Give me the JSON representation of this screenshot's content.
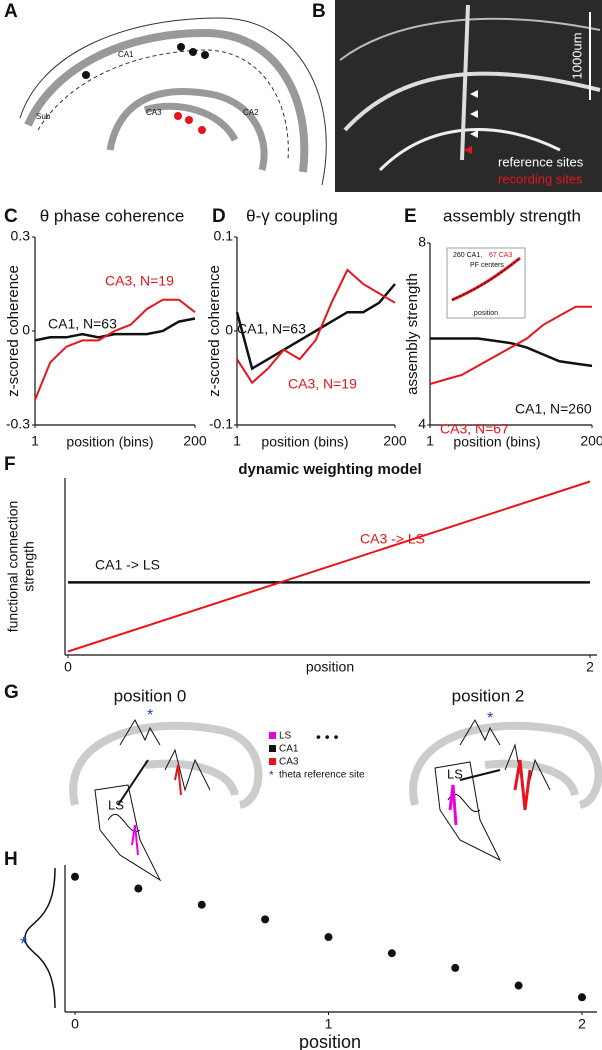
{
  "panels": {
    "A": {
      "letter": "A",
      "labels": [
        "CA1",
        "CA2",
        "CA3",
        "Sub"
      ]
    },
    "B": {
      "letter": "B",
      "scale_bar": "1000um",
      "legend": [
        "reference sites",
        "recording sites"
      ]
    },
    "G": {
      "letter": "G",
      "titles": [
        "position 0",
        "position 2"
      ],
      "region_labels": [
        "LS",
        "LS"
      ],
      "stars": [
        "*",
        "*"
      ],
      "ellipsis": "• • •",
      "legend": [
        "LS",
        "CA1",
        "CA3",
        "theta reference site"
      ],
      "legend_star": "*"
    }
  },
  "chart_data": [
    {
      "type": "line",
      "letter": "C",
      "title": "θ phase coherence",
      "ylabel": "z-scored coherence",
      "xlabel": "position (bins)",
      "x": [
        1,
        20,
        40,
        60,
        80,
        100,
        120,
        140,
        160,
        180,
        200
      ],
      "xlim": [
        1,
        200
      ],
      "xticks": [
        1,
        200
      ],
      "ylim": [
        -0.3,
        0.3
      ],
      "yticks": [
        -0.3,
        0,
        0.3
      ],
      "series": [
        {
          "name": "CA1, N=63",
          "color": "#111111",
          "values": [
            -0.03,
            -0.02,
            -0.02,
            -0.01,
            -0.02,
            -0.01,
            -0.01,
            -0.01,
            0.0,
            0.03,
            0.04
          ]
        },
        {
          "name": "CA3, N=19",
          "color": "#e8141c",
          "values": [
            -0.22,
            -0.1,
            -0.05,
            -0.03,
            -0.03,
            0.0,
            0.02,
            0.07,
            0.1,
            0.1,
            0.06
          ]
        }
      ]
    },
    {
      "type": "line",
      "letter": "D",
      "title": "θ-γ coupling",
      "ylabel": "z-scored coherence",
      "xlabel": "position (bins)",
      "x": [
        1,
        20,
        40,
        60,
        80,
        100,
        120,
        140,
        160,
        180,
        200
      ],
      "xlim": [
        1,
        200
      ],
      "xticks": [
        1,
        200
      ],
      "ylim": [
        -0.1,
        0.1
      ],
      "yticks": [
        -0.1,
        0,
        0.1
      ],
      "series": [
        {
          "name": "CA1, N=63",
          "color": "#111111",
          "values": [
            0.02,
            -0.04,
            -0.03,
            -0.02,
            -0.01,
            0.0,
            0.01,
            0.02,
            0.02,
            0.03,
            0.05
          ]
        },
        {
          "name": "CA3, N=19",
          "color": "#e8141c",
          "values": [
            -0.03,
            -0.055,
            -0.04,
            -0.02,
            -0.03,
            -0.01,
            0.03,
            0.065,
            0.05,
            0.04,
            0.03
          ]
        }
      ]
    },
    {
      "type": "line",
      "letter": "E",
      "title": "assembly strength",
      "ylabel": "assembly strength",
      "xlabel": "position (bins)",
      "x": [
        1,
        20,
        40,
        60,
        80,
        100,
        120,
        140,
        160,
        180,
        200
      ],
      "xlim": [
        1,
        200
      ],
      "xticks": [
        1,
        200
      ],
      "ylim": [
        4,
        8
      ],
      "yticks": [
        4,
        8
      ],
      "series": [
        {
          "name": "CA1, N=260",
          "color": "#111111",
          "values": [
            5.9,
            5.9,
            5.9,
            5.9,
            5.85,
            5.8,
            5.7,
            5.55,
            5.4,
            5.35,
            5.3
          ]
        },
        {
          "name": "CA3, N=67",
          "color": "#e8141c",
          "values": [
            4.9,
            5.0,
            5.1,
            5.3,
            5.5,
            5.7,
            5.9,
            6.2,
            6.4,
            6.6,
            6.6
          ]
        }
      ],
      "inset": {
        "title_parts": [
          "260 CA1,",
          "67 CA3"
        ],
        "subtitle": "PF centers",
        "xlabel": "position"
      }
    },
    {
      "type": "line",
      "letter": "F",
      "title": "dynamic weighting model",
      "ylabel": [
        "functional connection",
        "strength"
      ],
      "xlabel": "position",
      "x": [
        0,
        2
      ],
      "xlim": [
        0,
        2
      ],
      "xticks": [
        0,
        2
      ],
      "ylim": [
        0,
        1
      ],
      "series": [
        {
          "name": "CA1 -> LS",
          "color": "#111111",
          "values": [
            0.41,
            0.41
          ]
        },
        {
          "name": "CA3 -> LS",
          "color": "#e8141c",
          "values": [
            0.02,
            0.98
          ]
        }
      ]
    },
    {
      "type": "scatter",
      "letter": "H",
      "xlabel": "position",
      "annotation": "*",
      "x": [
        0,
        0.25,
        0.5,
        0.75,
        1,
        1.25,
        1.5,
        1.75,
        2
      ],
      "values": [
        0.92,
        0.84,
        0.73,
        0.63,
        0.51,
        0.4,
        0.3,
        0.18,
        0.1
      ],
      "color": "#111111",
      "xlim": [
        0,
        2
      ],
      "xticks": [
        0,
        1,
        2
      ],
      "ylim": [
        0,
        1
      ]
    }
  ]
}
